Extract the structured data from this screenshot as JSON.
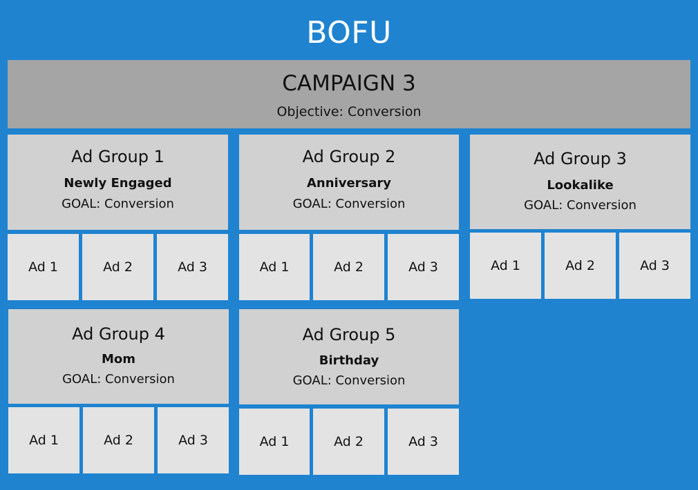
{
  "title": "BOFU",
  "campaign": {
    "name": "CAMPAIGN 3",
    "objective": "Objective: Conversion"
  },
  "ad_groups": [
    {
      "name": "Ad Group 1",
      "audience": "Newly Engaged",
      "goal": "GOAL: Conversion",
      "ads": [
        "Ad 1",
        "Ad 2",
        "Ad 3"
      ]
    },
    {
      "name": "Ad Group 2",
      "audience": "Anniversary",
      "goal": "GOAL: Conversion",
      "ads": [
        "Ad 1",
        "Ad 2",
        "Ad 3"
      ]
    },
    {
      "name": "Ad Group 3",
      "audience": "Lookalike",
      "goal": "GOAL: Conversion",
      "ads": [
        "Ad 1",
        "Ad 2",
        "Ad 3"
      ]
    },
    {
      "name": "Ad Group 4",
      "audience": "Mom",
      "goal": "GOAL: Conversion",
      "ads": [
        "Ad 1",
        "Ad 2",
        "Ad 3"
      ]
    },
    {
      "name": "Ad Group 5",
      "audience": "Birthday",
      "goal": "GOAL: Conversion",
      "ads": [
        "Ad 1",
        "Ad 2",
        "Ad 3"
      ]
    }
  ],
  "colors": {
    "background": "#1f83d0",
    "campaign": "#a5a5a5",
    "ad_group": "#d1d1d1",
    "ad": "#e3e3e3"
  }
}
